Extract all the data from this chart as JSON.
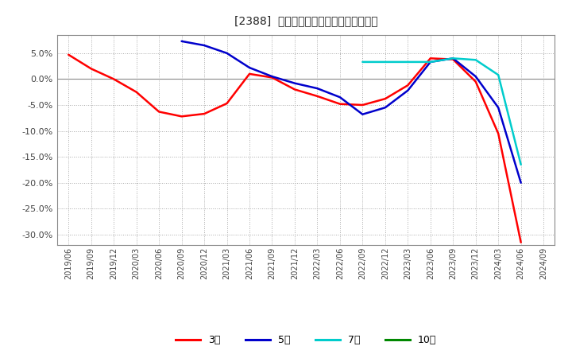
{
  "title": "[2388]  経常利益マージンの平均値の推移",
  "background_color": "#ffffff",
  "plot_bg_color": "#ffffff",
  "grid_color": "#aaaaaa",
  "ylim": [
    -0.32,
    0.085
  ],
  "yticks": [
    0.05,
    0.0,
    -0.05,
    -0.1,
    -0.15,
    -0.2,
    -0.25,
    -0.3
  ],
  "series": {
    "3年": {
      "color": "#ff0000",
      "x": [
        "2019/06",
        "2019/09",
        "2019/12",
        "2020/03",
        "2020/06",
        "2020/09",
        "2020/12",
        "2021/03",
        "2021/06",
        "2021/09",
        "2021/12",
        "2022/03",
        "2022/06",
        "2022/09",
        "2022/12",
        "2023/03",
        "2023/06",
        "2023/09",
        "2023/12",
        "2024/03",
        "2024/06"
      ],
      "y": [
        0.047,
        0.02,
        0.0,
        -0.025,
        -0.063,
        -0.072,
        -0.067,
        -0.047,
        0.01,
        0.003,
        -0.02,
        -0.033,
        -0.048,
        -0.05,
        -0.038,
        -0.012,
        0.04,
        0.038,
        -0.005,
        -0.105,
        -0.315
      ]
    },
    "5年": {
      "color": "#0000cc",
      "x": [
        "2020/09",
        "2020/12",
        "2021/03",
        "2021/06",
        "2021/09",
        "2021/12",
        "2022/03",
        "2022/06",
        "2022/09",
        "2022/12",
        "2023/03",
        "2023/06",
        "2023/09",
        "2023/12",
        "2024/03",
        "2024/06"
      ],
      "y": [
        0.073,
        0.065,
        0.05,
        0.022,
        0.005,
        -0.008,
        -0.018,
        -0.035,
        -0.068,
        -0.055,
        -0.022,
        0.033,
        0.04,
        0.005,
        -0.055,
        -0.2
      ]
    },
    "7年": {
      "color": "#00cccc",
      "x": [
        "2022/09",
        "2022/12",
        "2023/03",
        "2023/06",
        "2023/09",
        "2023/12",
        "2024/03",
        "2024/06"
      ],
      "y": [
        0.033,
        0.033,
        0.033,
        0.033,
        0.04,
        0.037,
        0.008,
        -0.165
      ]
    },
    "10年": {
      "color": "#008800",
      "x": [],
      "y": []
    }
  },
  "legend": {
    "labels": [
      "3年",
      "5年",
      "7年",
      "10年"
    ],
    "colors": [
      "#ff0000",
      "#0000cc",
      "#00cccc",
      "#008800"
    ]
  },
  "xtick_labels": [
    "2019/06",
    "2019/09",
    "2019/12",
    "2020/03",
    "2020/06",
    "2020/09",
    "2020/12",
    "2021/03",
    "2021/06",
    "2021/09",
    "2021/12",
    "2022/03",
    "2022/06",
    "2022/09",
    "2022/12",
    "2023/03",
    "2023/06",
    "2023/09",
    "2023/12",
    "2024/03",
    "2024/06",
    "2024/09"
  ]
}
